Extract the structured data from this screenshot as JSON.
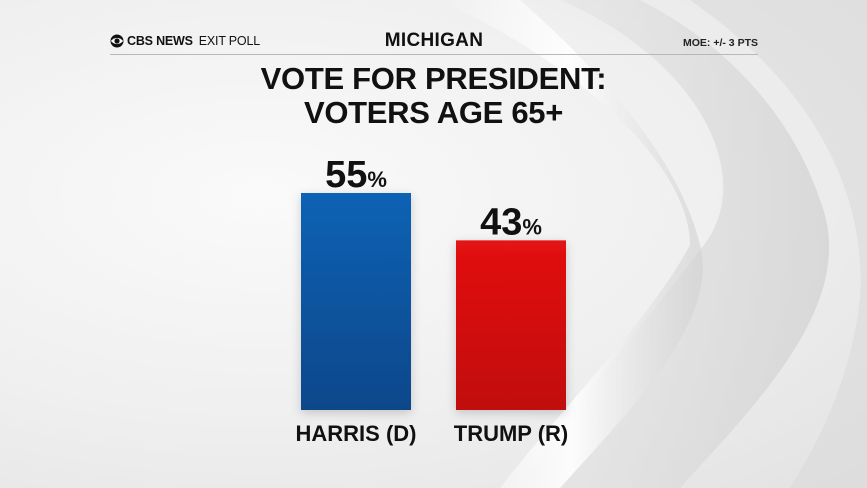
{
  "header": {
    "logo_brand": "CBS NEWS",
    "logo_suffix": "EXIT POLL",
    "state": "MICHIGAN",
    "moe": "MOE: +/- 3 PTS"
  },
  "chart_data": {
    "type": "bar",
    "title_line1": "VOTE FOR PRESIDENT:",
    "title_line2": "VOTERS AGE 65+",
    "categories": [
      "HARRIS (D)",
      "TRUMP (R)"
    ],
    "values": [
      55,
      43
    ],
    "value_labels": [
      "55",
      "43"
    ],
    "unit": "%",
    "colors": [
      "#0a5aa8",
      "#d80d0d"
    ],
    "ylim": [
      0,
      55
    ],
    "grid": false,
    "legend": "none"
  },
  "icons": {
    "logo": "cbs-eye-icon"
  }
}
